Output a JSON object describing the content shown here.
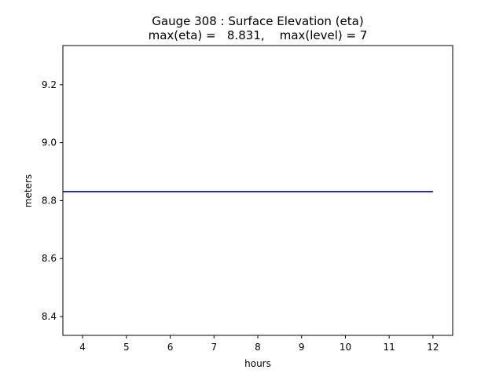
{
  "chart_data": {
    "type": "line",
    "title": "Gauge 308 : Surface Elevation (eta)",
    "subtitle": "max(eta) =   8.831,    max(level) = 7",
    "xlabel": "hours",
    "ylabel": "meters",
    "xlim": [
      3.55,
      12.45
    ],
    "ylim": [
      8.335,
      9.335
    ],
    "x_ticks": [
      "4",
      "5",
      "6",
      "7",
      "8",
      "9",
      "10",
      "11",
      "12"
    ],
    "y_ticks": [
      "8.4",
      "8.6",
      "8.8",
      "9.0",
      "9.2"
    ],
    "grid": false,
    "series": [
      {
        "color": "#0000cc",
        "x": [
          3.55,
          12.0
        ],
        "y": [
          8.831,
          8.831
        ]
      }
    ]
  }
}
